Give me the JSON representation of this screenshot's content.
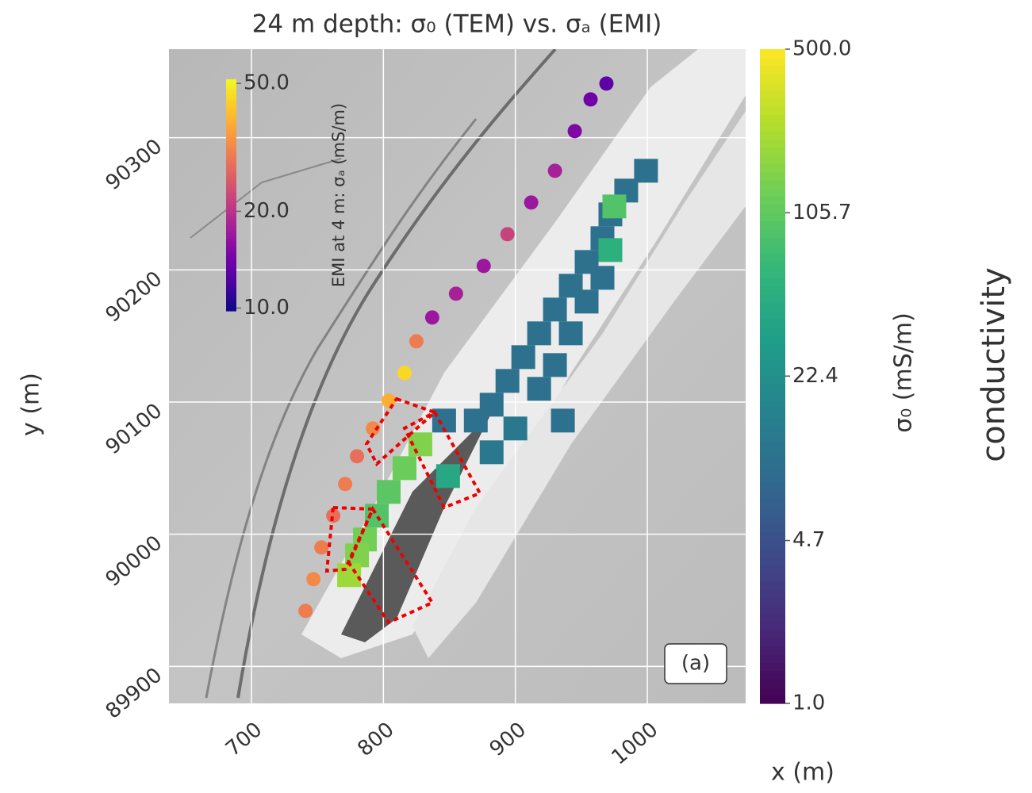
{
  "chart_data": {
    "type": "scatter",
    "title": "24 m depth: σ₀ (TEM) vs. σₐ (EMI)",
    "xlabel": "x (m)",
    "ylabel": "y (m)",
    "xlim": [
      637.5,
      1074.5
    ],
    "ylim": [
      89872,
      90367
    ],
    "xticks": [
      700,
      800,
      900,
      1000
    ],
    "yticks": [
      89900,
      90000,
      90100,
      90200,
      90300
    ],
    "grid": true,
    "annotation": "(a)",
    "side_label": "conductivity",
    "series": [
      {
        "marker": "circle",
        "x": [
          741,
          747,
          753,
          762,
          771,
          780,
          792,
          804,
          816,
          825,
          837,
          855,
          876,
          894,
          912,
          930,
          945,
          957,
          969
        ],
        "y": [
          89942,
          89966,
          89990,
          90014,
          90038,
          90059,
          90080,
          90101,
          90122,
          90146,
          90164,
          90182,
          90203,
          90227,
          90251,
          90275,
          90305,
          90329,
          90341
        ],
        "values": [
          30,
          32,
          30,
          28,
          30,
          28,
          32,
          38,
          45,
          30,
          17,
          18,
          17,
          22,
          17,
          18,
          15,
          14,
          13
        ],
        "colorbar": {
          "label": "EMI at 4 m: σₐ (mS/m)",
          "lim": [
            9.8,
            51.5
          ],
          "scale": "log",
          "ticks": [
            {
              "value": 10,
              "label": "10.0"
            },
            {
              "value": 20,
              "label": "20.0"
            },
            {
              "value": 50,
              "label": "50.0"
            }
          ],
          "colors": [
            "#0d0887",
            "#46039f",
            "#7201a8",
            "#9c179e",
            "#bd3786",
            "#d8576b",
            "#ed7953",
            "#fb9f3a",
            "#fdca26",
            "#f0f921"
          ]
        }
      },
      {
        "marker": "square",
        "x": [
          999,
          984,
          972,
          966,
          954,
          942,
          930,
          918,
          906,
          894,
          882,
          870,
          846,
          942,
          930,
          918,
          954,
          966,
          900,
          882,
          936,
          975,
          972,
          828,
          816,
          849,
          804,
          795,
          786,
          780,
          774
        ],
        "y": [
          90275,
          90260,
          90242,
          90224,
          90206,
          90188,
          90170,
          90152,
          90134,
          90116,
          90098,
          90086,
          90086,
          90152,
          90128,
          90110,
          90176,
          90194,
          90080,
          90062,
          90086,
          90248,
          90215,
          90068,
          90050,
          90044,
          90032,
          90014,
          89996,
          89984,
          89969
        ],
        "values": [
          10,
          10,
          10,
          10,
          10,
          10,
          10,
          10,
          10,
          10,
          10,
          10,
          10,
          10,
          10,
          10,
          10,
          10,
          12,
          12,
          10,
          90,
          50,
          150,
          120,
          40,
          100,
          90,
          130,
          150,
          200
        ],
        "colorbar": {
          "label": "σ₀ (mS/m)",
          "lim": [
            1.0,
            500.0
          ],
          "scale": "log",
          "ticks": [
            {
              "value": 1.0,
              "label": "1.0"
            },
            4.7,
            22.4,
            105.7,
            {
              "value": 500.0,
              "label": "500.0"
            }
          ],
          "colors": [
            "#440154",
            "#482878",
            "#3e4989",
            "#31688e",
            "#26828e",
            "#1f9e89",
            "#35b779",
            "#6ece58",
            "#b5de2b",
            "#fde725"
          ]
        }
      }
    ]
  }
}
